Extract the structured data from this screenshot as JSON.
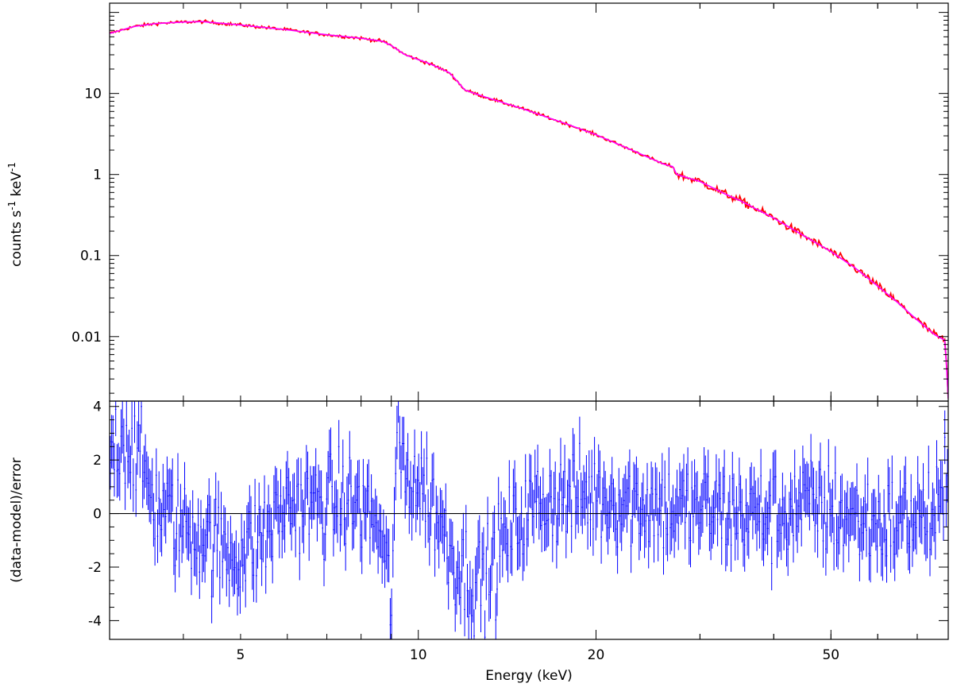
{
  "chart_data": [
    {
      "type": "line",
      "panel": "spectrum",
      "xscale": "log",
      "yscale": "log",
      "xlim": [
        3,
        79
      ],
      "ylim": [
        0.0016,
        130
      ],
      "ylabel_parts": [
        "counts s",
        "-1",
        " keV",
        "-1"
      ],
      "ylabel": "counts s^-1 keV^-1",
      "yticks": [
        {
          "value": 10,
          "label": "10"
        },
        {
          "value": 1,
          "label": "1"
        },
        {
          "value": 0.1,
          "label": "0.1"
        },
        {
          "value": 0.01,
          "label": "0.01"
        }
      ],
      "series": [
        {
          "role": "data",
          "color": "#ff0000",
          "points": [
            [
              3.0,
              55
            ],
            [
              3.3,
              67
            ],
            [
              3.6,
              73
            ],
            [
              4.0,
              76
            ],
            [
              4.3,
              77
            ],
            [
              5.0,
              70
            ],
            [
              6.0,
              61
            ],
            [
              7.0,
              53
            ],
            [
              8.0,
              48
            ],
            [
              8.7,
              44
            ],
            [
              9.0,
              39
            ],
            [
              9.5,
              30
            ],
            [
              10.5,
              23
            ],
            [
              11.3,
              18
            ],
            [
              12.0,
              11
            ],
            [
              13.0,
              9
            ],
            [
              15.0,
              6.5
            ],
            [
              18.0,
              4.1
            ],
            [
              20.0,
              3.1
            ],
            [
              23.0,
              2.0
            ],
            [
              26.0,
              1.35
            ],
            [
              27.0,
              1.25
            ],
            [
              27.4,
              1.0
            ],
            [
              30.0,
              0.82
            ],
            [
              33.0,
              0.58
            ],
            [
              35.0,
              0.48
            ],
            [
              40.0,
              0.29
            ],
            [
              45.0,
              0.175
            ],
            [
              50.0,
              0.112
            ],
            [
              55.0,
              0.07
            ],
            [
              60.0,
              0.042
            ],
            [
              65.0,
              0.026
            ],
            [
              70.0,
              0.016
            ],
            [
              75.0,
              0.0105
            ],
            [
              78.0,
              0.009
            ],
            [
              78.6,
              0.0035
            ],
            [
              79.0,
              0.0017
            ]
          ]
        },
        {
          "role": "model",
          "color": "#ff00ff",
          "points": [
            [
              3.0,
              55
            ],
            [
              3.3,
              67
            ],
            [
              3.6,
              73
            ],
            [
              4.0,
              76
            ],
            [
              4.3,
              77
            ],
            [
              5.0,
              70
            ],
            [
              6.0,
              61
            ],
            [
              7.0,
              53
            ],
            [
              8.0,
              48
            ],
            [
              8.7,
              44
            ],
            [
              9.0,
              39
            ],
            [
              9.5,
              30
            ],
            [
              10.5,
              23
            ],
            [
              11.3,
              18
            ],
            [
              12.0,
              11
            ],
            [
              13.0,
              9
            ],
            [
              15.0,
              6.5
            ],
            [
              18.0,
              4.1
            ],
            [
              20.0,
              3.1
            ],
            [
              23.0,
              2.0
            ],
            [
              26.0,
              1.35
            ],
            [
              27.0,
              1.25
            ],
            [
              27.4,
              1.0
            ],
            [
              30.0,
              0.82
            ],
            [
              33.0,
              0.58
            ],
            [
              35.0,
              0.48
            ],
            [
              40.0,
              0.29
            ],
            [
              45.0,
              0.175
            ],
            [
              50.0,
              0.112
            ],
            [
              55.0,
              0.07
            ],
            [
              60.0,
              0.042
            ],
            [
              65.0,
              0.026
            ],
            [
              70.0,
              0.016
            ],
            [
              75.0,
              0.0105
            ],
            [
              78.0,
              0.009
            ],
            [
              78.6,
              0.0035
            ],
            [
              79.0,
              0.0017
            ]
          ]
        }
      ]
    },
    {
      "type": "scatter",
      "panel": "residuals",
      "xscale": "log",
      "yscale": "linear",
      "xlim": [
        3,
        79
      ],
      "ylim": [
        -4.7,
        4.2
      ],
      "xlabel": "Energy (keV)",
      "ylabel": "(data-model)/error",
      "xticks": [
        {
          "value": 5,
          "label": "5"
        },
        {
          "value": 10,
          "label": "10"
        },
        {
          "value": 20,
          "label": "20"
        },
        {
          "value": 50,
          "label": "50"
        }
      ],
      "yticks": [
        {
          "value": 4,
          "label": "4"
        },
        {
          "value": 2,
          "label": "2"
        },
        {
          "value": 0,
          "label": "0"
        },
        {
          "value": -2,
          "label": "-2"
        },
        {
          "value": -4,
          "label": "-4"
        }
      ],
      "zero_line": 0,
      "series": [
        {
          "role": "residuals",
          "color": "#0000ff",
          "error_bar": 1,
          "trend": [
            [
              3.0,
              2.3
            ],
            [
              3.15,
              3.0
            ],
            [
              3.3,
              2.5
            ],
            [
              3.6,
              0.3
            ],
            [
              4.0,
              -0.5
            ],
            [
              4.3,
              -0.7
            ],
            [
              4.6,
              -1.3
            ],
            [
              5.0,
              -1.5
            ],
            [
              5.5,
              -0.8
            ],
            [
              6.0,
              0.4
            ],
            [
              6.7,
              0.3
            ],
            [
              7.5,
              0.5
            ],
            [
              8.0,
              0.2
            ],
            [
              8.5,
              -0.3
            ],
            [
              8.8,
              -2.0
            ],
            [
              9.0,
              -3.2
            ],
            [
              9.2,
              2.6
            ],
            [
              9.5,
              1.6
            ],
            [
              10.0,
              1.1
            ],
            [
              10.5,
              0.5
            ],
            [
              11.0,
              -0.6
            ],
            [
              11.5,
              -1.6
            ],
            [
              12.0,
              -2.2
            ],
            [
              12.5,
              -2.5
            ],
            [
              13.0,
              -2.4
            ],
            [
              13.5,
              -1.8
            ],
            [
              14.0,
              -1.0
            ],
            [
              15.0,
              -0.1
            ],
            [
              16.0,
              0.4
            ],
            [
              17.0,
              0.6
            ],
            [
              18.0,
              0.6
            ],
            [
              20.0,
              0.7
            ],
            [
              22.0,
              0.5
            ],
            [
              25.0,
              0.3
            ],
            [
              28.0,
              0.1
            ],
            [
              30.0,
              0.2
            ],
            [
              35.0,
              0.0
            ],
            [
              40.0,
              -0.1
            ],
            [
              45.0,
              0.3
            ],
            [
              50.0,
              0.1
            ],
            [
              55.0,
              -0.2
            ],
            [
              60.0,
              -0.4
            ],
            [
              65.0,
              -0.3
            ],
            [
              70.0,
              0.0
            ],
            [
              75.0,
              -0.2
            ],
            [
              79.0,
              0.8
            ]
          ]
        }
      ]
    }
  ]
}
